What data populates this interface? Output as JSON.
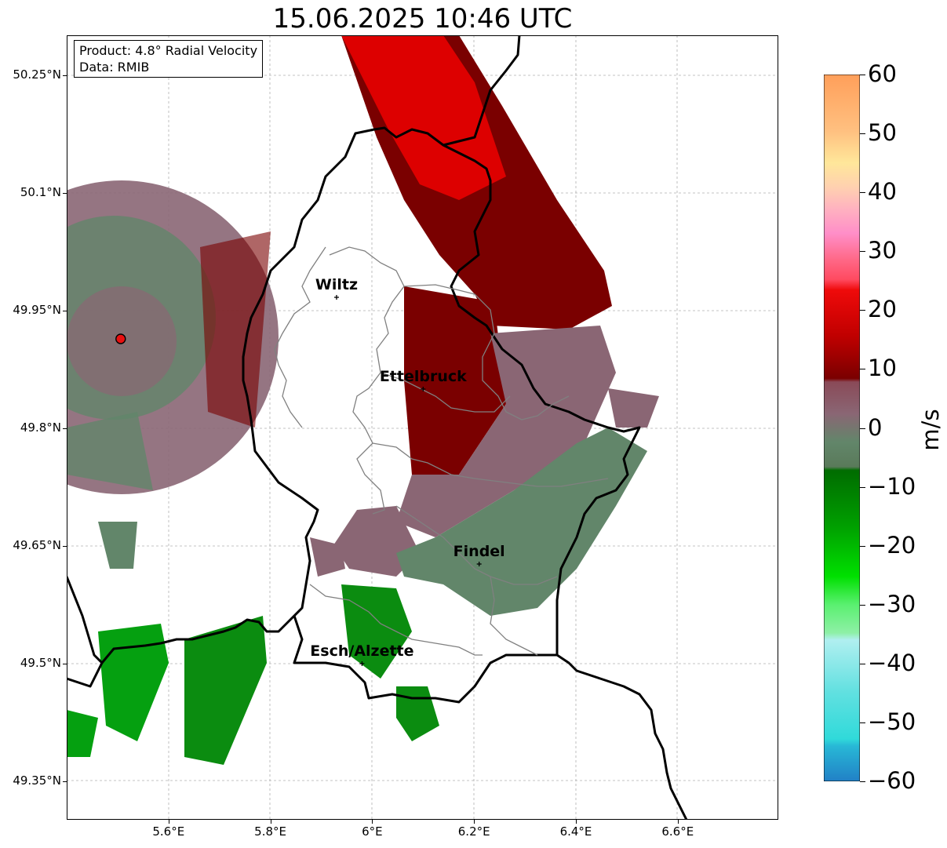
{
  "title": "15.06.2025 10:46 UTC",
  "info_box": {
    "product": "Product: 4.8° Radial Velocity",
    "source": "Data: RMIB"
  },
  "lat_labels": [
    "50.25°N",
    "50.1°N",
    "49.95°N",
    "49.8°N",
    "49.65°N",
    "49.5°N",
    "49.35°N"
  ],
  "lon_labels": [
    "5.6°E",
    "5.8°E",
    "6°E",
    "6.2°E",
    "6.4°E",
    "6.6°E"
  ],
  "cities": [
    {
      "name": "Wiltz",
      "lon": 5.93,
      "lat": 49.967
    },
    {
      "name": "Ettelbruck",
      "lon": 6.1,
      "lat": 49.85
    },
    {
      "name": "Findel",
      "lon": 6.21,
      "lat": 49.627
    },
    {
      "name": "Esch/Alzette",
      "lon": 5.98,
      "lat": 49.5
    }
  ],
  "radar_site": {
    "lon": 5.506,
    "lat": 49.914
  },
  "colorbar": {
    "unit": "m/s",
    "labels": [
      "60",
      "50",
      "40",
      "30",
      "20",
      "10",
      "0",
      "−10",
      "−20",
      "−30",
      "−40",
      "−50",
      "−60"
    ],
    "colors": {
      "orange": "#ff9f5a",
      "peach": "#ffd49a",
      "pink": "#ff8ec8",
      "salmon": "#ff5c78",
      "red": "#ef0a0a",
      "darkred": "#7a0000",
      "mauve": "#8a6674",
      "grey_green": "#62866a",
      "dark_green": "#006c00",
      "green": "#00c000",
      "light_green": "#8ef0a6",
      "light_cyan": "#b0eff0",
      "cyan": "#30dada",
      "blue": "#2180c6"
    }
  }
}
